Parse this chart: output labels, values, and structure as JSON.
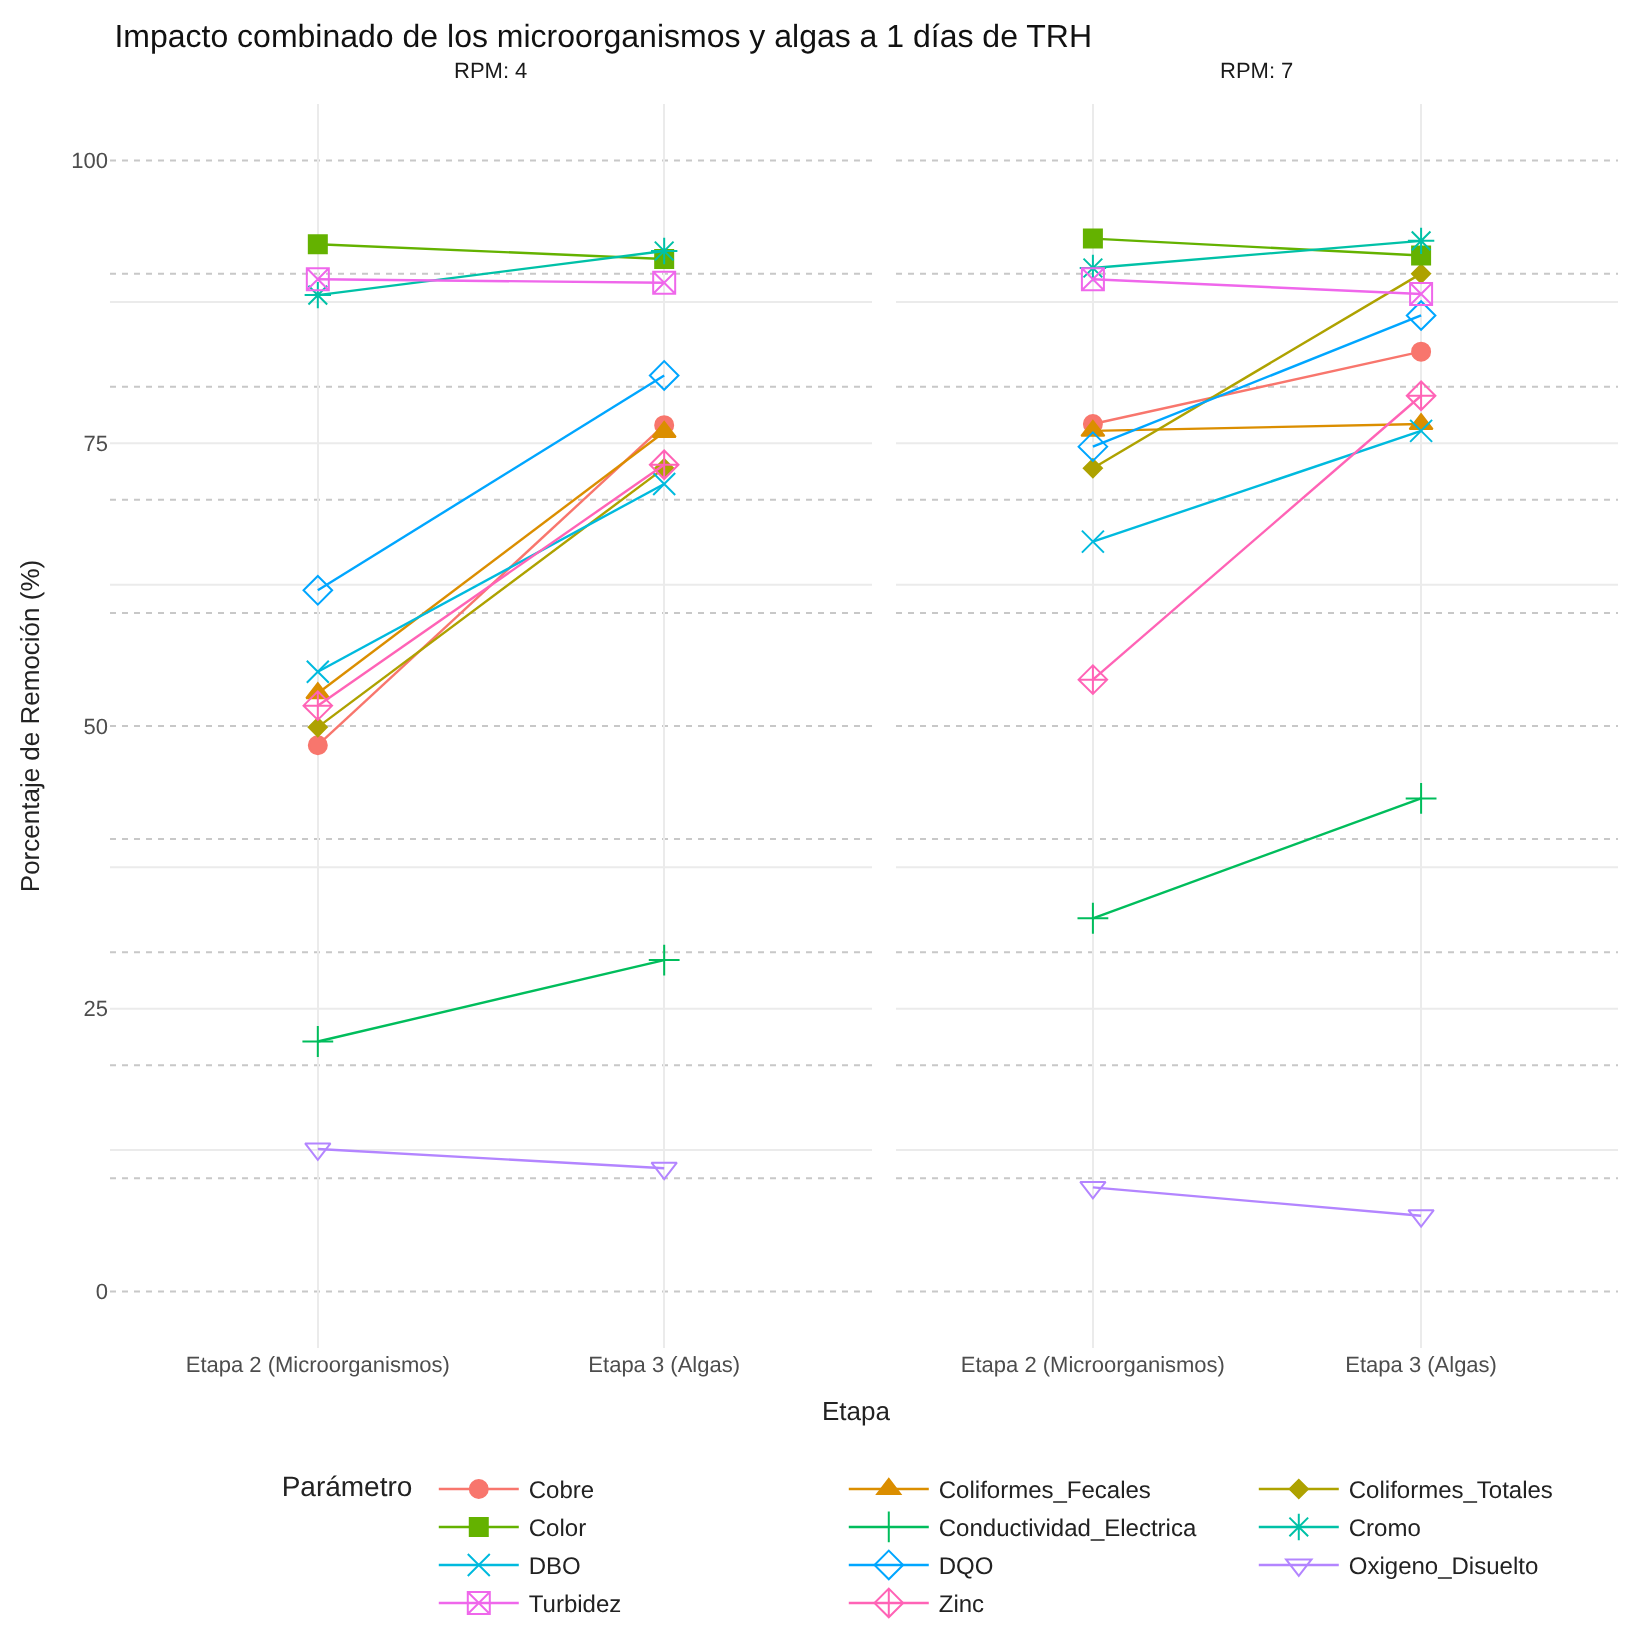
{
  "chart_data": [
    {
      "type": "line",
      "title": "Impacto combinado de los microorganismos y algas a 1 días de TRH",
      "subtitle": "RPM: 4",
      "xlabel": "Etapa",
      "ylabel": "Porcentaje de Remoción (%)",
      "legend_title": "Parámetro",
      "legend": "bottom",
      "categories": [
        "Etapa 2 (Microorganismos)",
        "Etapa 3 (Algas)"
      ],
      "ylim": [
        -5,
        105
      ],
      "yticks": [
        0,
        25,
        50,
        75,
        100
      ],
      "grid": true,
      "ref_lines": [
        {
          "axis": "y",
          "value": 0,
          "line_style": "dotted"
        },
        {
          "axis": "y",
          "value": 10,
          "line_style": "dotted"
        },
        {
          "axis": "y",
          "value": 20,
          "line_style": "dotted"
        },
        {
          "axis": "y",
          "value": 30,
          "line_style": "dotted"
        },
        {
          "axis": "y",
          "value": 40,
          "line_style": "dotted"
        },
        {
          "axis": "y",
          "value": 50,
          "line_style": "dotted"
        },
        {
          "axis": "y",
          "value": 60,
          "line_style": "dotted"
        },
        {
          "axis": "y",
          "value": 70,
          "line_style": "dotted"
        },
        {
          "axis": "y",
          "value": 80,
          "line_style": "dotted"
        },
        {
          "axis": "y",
          "value": 90,
          "line_style": "dotted"
        },
        {
          "axis": "y",
          "value": 100,
          "line_style": "dotted"
        }
      ],
      "series": [
        {
          "name": "Cobre",
          "color": "#f8766d",
          "marker": "circle",
          "values": [
            48.3,
            76.6
          ]
        },
        {
          "name": "Coliformes_Fecales",
          "color": "#db8e00",
          "marker": "triangle",
          "values": [
            52.9,
            76.0
          ]
        },
        {
          "name": "Coliformes_Totales",
          "color": "#aea200",
          "marker": "diamond",
          "values": [
            49.9,
            72.8
          ]
        },
        {
          "name": "Color",
          "color": "#64b200",
          "marker": "square",
          "values": [
            92.6,
            91.3
          ]
        },
        {
          "name": "Conductividad_Electrica",
          "color": "#00bd5c",
          "marker": "cross",
          "values": [
            22.1,
            29.3
          ]
        },
        {
          "name": "Cromo",
          "color": "#00c1a7",
          "marker": "cross",
          "values": [
            88.1,
            92.0
          ]
        },
        {
          "name": "DBO",
          "color": "#00bade",
          "marker": "x",
          "values": [
            54.8,
            71.4
          ]
        },
        {
          "name": "DQO",
          "color": "#00a6ff",
          "marker": "diamond-open",
          "values": [
            62.0,
            81.0
          ]
        },
        {
          "name": "Oxigeno_Disuelto",
          "color": "#b385ff",
          "marker": "triangle-down-open",
          "values": [
            12.6,
            10.9
          ]
        },
        {
          "name": "Turbidez",
          "color": "#ef67eb",
          "marker": "cross",
          "values": [
            89.5,
            89.2
          ]
        },
        {
          "name": "Zinc",
          "color": "#ff63b6",
          "marker": "diamond-cross-open",
          "values": [
            51.8,
            73.1
          ]
        }
      ]
    },
    {
      "type": "line",
      "subtitle": "RPM: 7",
      "tick_labels": "x",
      "categories": [
        "Etapa 2 (Microorganismos)",
        "Etapa 3 (Algas)"
      ],
      "ylim": [
        -5,
        105
      ],
      "yticks": [
        0,
        25,
        50,
        75,
        100
      ],
      "grid": true,
      "ref_lines": [
        {
          "axis": "y",
          "value": 0,
          "line_style": "dotted"
        },
        {
          "axis": "y",
          "value": 10,
          "line_style": "dotted"
        },
        {
          "axis": "y",
          "value": 20,
          "line_style": "dotted"
        },
        {
          "axis": "y",
          "value": 30,
          "line_style": "dotted"
        },
        {
          "axis": "y",
          "value": 40,
          "line_style": "dotted"
        },
        {
          "axis": "y",
          "value": 50,
          "line_style": "dotted"
        },
        {
          "axis": "y",
          "value": 60,
          "line_style": "dotted"
        },
        {
          "axis": "y",
          "value": 70,
          "line_style": "dotted"
        },
        {
          "axis": "y",
          "value": 80,
          "line_style": "dotted"
        },
        {
          "axis": "y",
          "value": 90,
          "line_style": "dotted"
        },
        {
          "axis": "y",
          "value": 100,
          "line_style": "dotted"
        }
      ],
      "series": [
        {
          "color": "#f8766d",
          "marker": "circle",
          "values": [
            76.7,
            83.1
          ]
        },
        {
          "color": "#db8e00",
          "marker": "triangle",
          "values": [
            76.1,
            76.7
          ]
        },
        {
          "color": "#aea200",
          "marker": "diamond",
          "values": [
            72.8,
            90.0
          ]
        },
        {
          "color": "#64b200",
          "marker": "square",
          "values": [
            93.1,
            91.6
          ]
        },
        {
          "color": "#00bd5c",
          "marker": "cross",
          "values": [
            33.0,
            43.6
          ]
        },
        {
          "color": "#00c1a7",
          "marker": "cross",
          "values": [
            90.5,
            92.9
          ]
        },
        {
          "color": "#00bade",
          "marker": "x",
          "values": [
            66.3,
            76.1
          ]
        },
        {
          "color": "#00a6ff",
          "marker": "diamond-open",
          "values": [
            74.7,
            86.3
          ]
        },
        {
          "color": "#b385ff",
          "marker": "triangle-down-open",
          "values": [
            9.2,
            6.7
          ]
        },
        {
          "color": "#ef67eb",
          "marker": "cross",
          "values": [
            89.5,
            88.2
          ]
        },
        {
          "color": "#ff63b6",
          "marker": "diamond-cross-open",
          "values": [
            54.1,
            79.2
          ]
        }
      ]
    }
  ]
}
